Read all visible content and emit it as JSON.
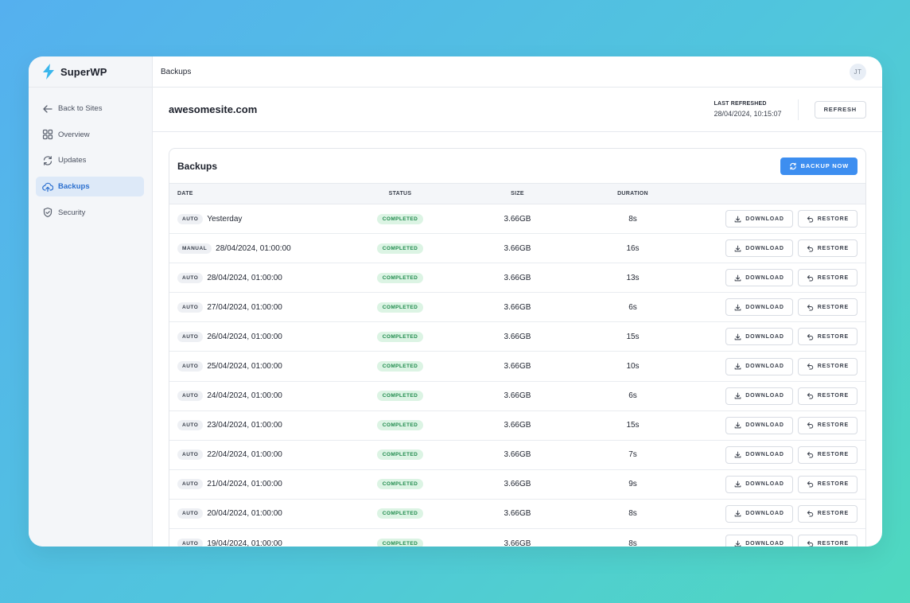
{
  "app": {
    "name": "SuperWP",
    "page_title": "Backups",
    "avatar_initials": "JT"
  },
  "sidebar": {
    "items": [
      {
        "label": "Back to Sites",
        "icon": "arrow-left-icon"
      },
      {
        "label": "Overview",
        "icon": "grid-icon"
      },
      {
        "label": "Updates",
        "icon": "refresh-icon"
      },
      {
        "label": "Backups",
        "icon": "cloud-upload-icon",
        "active": true
      },
      {
        "label": "Security",
        "icon": "shield-check-icon"
      }
    ]
  },
  "site": {
    "name": "awesomesite.com",
    "last_refreshed_label": "LAST REFRESHED",
    "last_refreshed_value": "28/04/2024, 10:15:07",
    "refresh_label": "REFRESH"
  },
  "backups": {
    "title": "Backups",
    "backup_now_label": "BACKUP NOW",
    "columns": {
      "date": "DATE",
      "status": "STATUS",
      "size": "SIZE",
      "duration": "DURATION"
    },
    "download_label": "DOWNLOAD",
    "restore_label": "RESTORE",
    "rows": [
      {
        "type": "AUTO",
        "date": "Yesterday",
        "status": "COMPLETED",
        "size": "3.66GB",
        "duration": "8s"
      },
      {
        "type": "MANUAL",
        "date": "28/04/2024, 01:00:00",
        "status": "COMPLETED",
        "size": "3.66GB",
        "duration": "16s"
      },
      {
        "type": "AUTO",
        "date": "28/04/2024, 01:00:00",
        "status": "COMPLETED",
        "size": "3.66GB",
        "duration": "13s"
      },
      {
        "type": "AUTO",
        "date": "27/04/2024, 01:00:00",
        "status": "COMPLETED",
        "size": "3.66GB",
        "duration": "6s"
      },
      {
        "type": "AUTO",
        "date": "26/04/2024, 01:00:00",
        "status": "COMPLETED",
        "size": "3.66GB",
        "duration": "15s"
      },
      {
        "type": "AUTO",
        "date": "25/04/2024, 01:00:00",
        "status": "COMPLETED",
        "size": "3.66GB",
        "duration": "10s"
      },
      {
        "type": "AUTO",
        "date": "24/04/2024, 01:00:00",
        "status": "COMPLETED",
        "size": "3.66GB",
        "duration": "6s"
      },
      {
        "type": "AUTO",
        "date": "23/04/2024, 01:00:00",
        "status": "COMPLETED",
        "size": "3.66GB",
        "duration": "15s"
      },
      {
        "type": "AUTO",
        "date": "22/04/2024, 01:00:00",
        "status": "COMPLETED",
        "size": "3.66GB",
        "duration": "7s"
      },
      {
        "type": "AUTO",
        "date": "21/04/2024, 01:00:00",
        "status": "COMPLETED",
        "size": "3.66GB",
        "duration": "9s"
      },
      {
        "type": "AUTO",
        "date": "20/04/2024, 01:00:00",
        "status": "COMPLETED",
        "size": "3.66GB",
        "duration": "8s"
      },
      {
        "type": "AUTO",
        "date": "19/04/2024, 01:00:00",
        "status": "COMPLETED",
        "size": "3.66GB",
        "duration": "8s"
      }
    ]
  },
  "colors": {
    "accent": "#3d8ef0",
    "active_nav_bg": "#dde9f8",
    "active_nav_text": "#2b6fcf",
    "status_completed_bg": "#dcf4e4",
    "status_completed_text": "#1f8a4c",
    "brand_bolt": "#39b6ec"
  }
}
